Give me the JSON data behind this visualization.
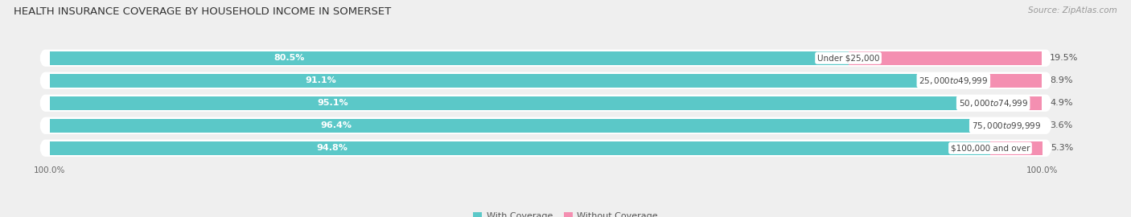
{
  "title": "HEALTH INSURANCE COVERAGE BY HOUSEHOLD INCOME IN SOMERSET",
  "source": "Source: ZipAtlas.com",
  "categories": [
    "Under $25,000",
    "$25,000 to $49,999",
    "$50,000 to $74,999",
    "$75,000 to $99,999",
    "$100,000 and over"
  ],
  "with_coverage": [
    80.5,
    91.1,
    95.1,
    96.4,
    94.8
  ],
  "without_coverage": [
    19.5,
    8.9,
    4.9,
    3.6,
    5.3
  ],
  "color_with": "#5BC8C8",
  "color_without": "#F48FB1",
  "bg_color": "#efefef",
  "title_fontsize": 9.5,
  "label_fontsize": 8,
  "tick_fontsize": 7.5,
  "legend_fontsize": 8,
  "source_fontsize": 7.5
}
